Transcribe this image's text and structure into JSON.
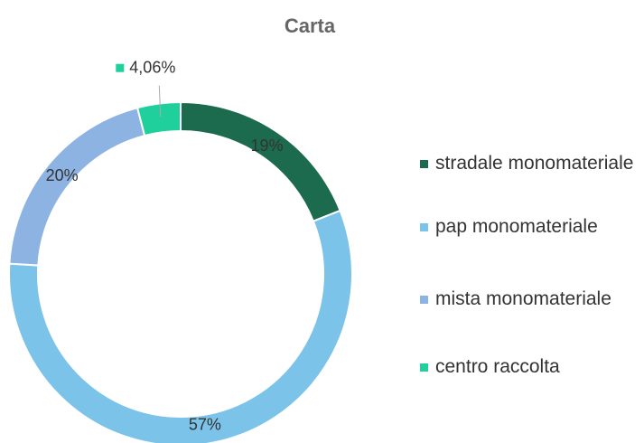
{
  "chart_data": {
    "type": "pie",
    "title": "Carta",
    "categories": [
      "stradale monomateriale",
      "pap monomateriale",
      "mista monomateriale",
      "centro raccolta"
    ],
    "values": [
      19,
      57,
      20,
      4.06
    ],
    "value_labels": [
      "19%",
      "57%",
      "20%",
      "4,06%"
    ],
    "colors": [
      "#1d6b4f",
      "#7cc3ea",
      "#8db3e2",
      "#1fd09c"
    ],
    "legend": "right"
  }
}
